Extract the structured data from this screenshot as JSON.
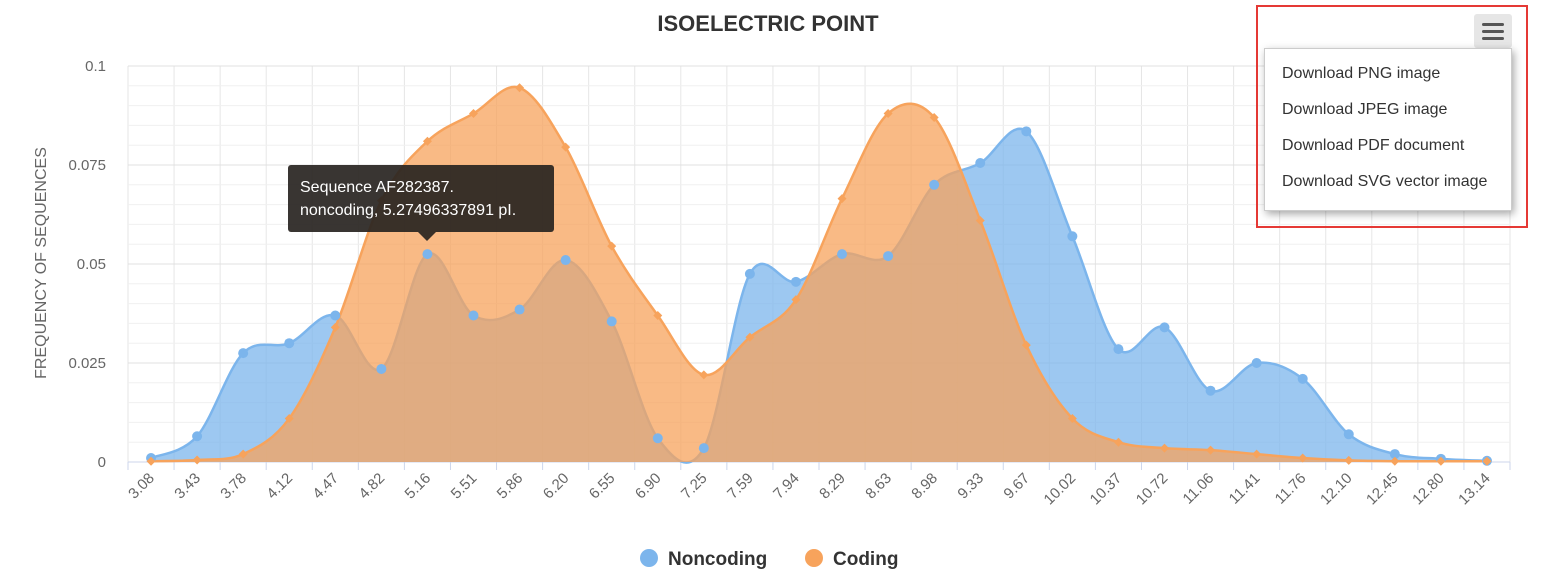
{
  "chart_data": {
    "type": "area",
    "title": "ISOELECTRIC POINT",
    "xlabel": "",
    "ylabel": "FREQUENCY OF SEQUENCES",
    "ylim": [
      0,
      0.1
    ],
    "yticks": [
      "0",
      "0.025",
      "0.05",
      "0.075",
      "0.1"
    ],
    "categories": [
      "3.08",
      "3.43",
      "3.78",
      "4.12",
      "4.47",
      "4.82",
      "5.16",
      "5.51",
      "5.86",
      "6.20",
      "6.55",
      "6.90",
      "7.25",
      "7.59",
      "7.94",
      "8.29",
      "8.63",
      "8.98",
      "9.33",
      "9.67",
      "10.02",
      "10.37",
      "10.72",
      "11.06",
      "11.41",
      "11.76",
      "12.10",
      "12.45",
      "12.80",
      "13.14"
    ],
    "grid": true,
    "legend_position": "bottom-center",
    "series": [
      {
        "name": "Noncoding",
        "color": "#7cb5ec",
        "marker": "circle",
        "values": [
          0.001,
          0.0065,
          0.0275,
          0.03,
          0.037,
          0.0235,
          0.0525,
          0.037,
          0.0385,
          0.051,
          0.0355,
          0.006,
          0.0035,
          0.0475,
          0.0455,
          0.0525,
          0.052,
          0.07,
          0.0755,
          0.0835,
          0.057,
          0.0285,
          0.034,
          0.018,
          0.025,
          0.021,
          0.007,
          0.002,
          0.0008,
          0.0003
        ]
      },
      {
        "name": "Coding",
        "color": "#f7a35c",
        "marker": "diamond",
        "values": [
          0.0002,
          0.0005,
          0.002,
          0.011,
          0.034,
          0.066,
          0.081,
          0.088,
          0.0945,
          0.0795,
          0.0545,
          0.037,
          0.022,
          0.0315,
          0.041,
          0.0665,
          0.088,
          0.087,
          0.061,
          0.0295,
          0.011,
          0.005,
          0.0035,
          0.003,
          0.002,
          0.001,
          0.0004,
          0.0002,
          0.0002,
          0.0002
        ]
      }
    ]
  },
  "tooltip": {
    "line1": "Sequence AF282387.",
    "line2": "noncoding, 5.27496337891 pI."
  },
  "export_menu": {
    "button_icon": "hamburger-menu-icon",
    "items": [
      "Download PNG image",
      "Download JPEG image",
      "Download PDF document",
      "Download SVG vector image"
    ]
  },
  "highlight_color": "#e53935"
}
